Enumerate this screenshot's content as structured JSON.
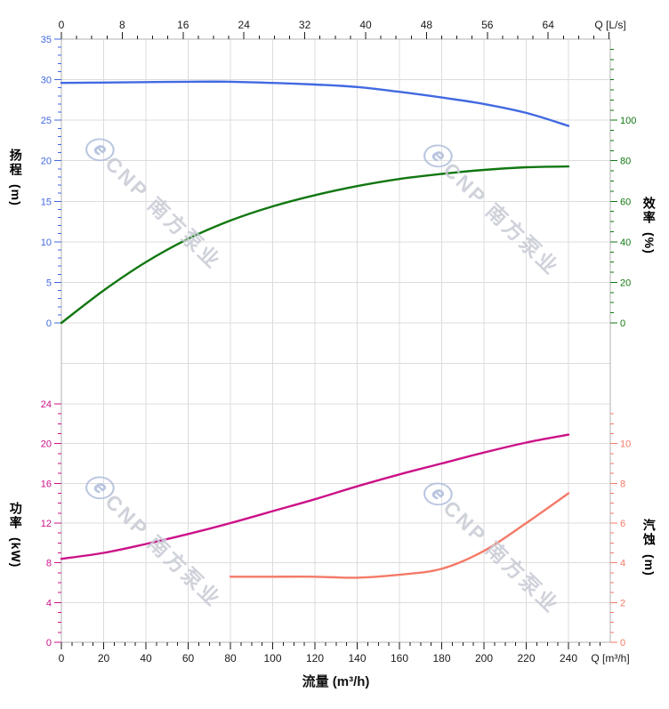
{
  "chart_data": {
    "type": "line",
    "grid": true,
    "legend": false,
    "x_axis_bottom": {
      "label": "流量 (m³/h)",
      "corner_label": "Q [m³/h]",
      "unit": "m³/h",
      "ticks": [
        0,
        20,
        40,
        60,
        80,
        100,
        120,
        140,
        160,
        180,
        200,
        220,
        240
      ],
      "minor_step": 5,
      "range": [
        0,
        260
      ]
    },
    "x_axis_top": {
      "corner_label": "Q [L/s]",
      "unit": "L/s",
      "ticks": [
        0,
        8,
        16,
        24,
        32,
        40,
        48,
        56,
        64
      ],
      "minor_step": 2,
      "range": [
        0,
        72
      ]
    },
    "panels": [
      {
        "name": "head-efficiency",
        "left_axis": {
          "title": "扬程",
          "unit": "(m)",
          "color": "#4169e1",
          "ticks": [
            0,
            5,
            10,
            15,
            20,
            25,
            30,
            35
          ],
          "minor_step": 1,
          "range": [
            0,
            35
          ]
        },
        "right_axis": {
          "title": "效率",
          "unit": "(%)",
          "color": "#117711",
          "ticks": [
            0,
            20,
            40,
            60,
            80,
            100
          ],
          "minor_step": 5,
          "range": [
            0,
            140
          ]
        },
        "series": [
          {
            "name": "head",
            "label": "扬程",
            "axis": "left",
            "color": "#4169e1",
            "x": [
              0,
              20,
              40,
              60,
              80,
              100,
              120,
              140,
              160,
              180,
              200,
              220,
              240
            ],
            "y": [
              29.6,
              29.65,
              29.7,
              29.75,
              29.75,
              29.6,
              29.4,
              29.1,
              28.5,
              27.8,
              27.0,
              25.9,
              24.3
            ]
          },
          {
            "name": "efficiency",
            "label": "效率",
            "axis": "right",
            "color": "#117711",
            "x": [
              0,
              20,
              40,
              60,
              80,
              100,
              120,
              140,
              160,
              180,
              200,
              220,
              240
            ],
            "y": [
              0,
              16,
              30,
              41.5,
              50.5,
              57.5,
              63,
              67.5,
              71,
              73.5,
              75.5,
              76.8,
              77.2
            ]
          }
        ]
      },
      {
        "name": "power-npsh",
        "left_axis": {
          "title": "功率",
          "unit": "(kW)",
          "color": "#cc1188",
          "ticks": [
            0,
            4,
            8,
            12,
            16,
            20,
            24
          ],
          "minor_step": 1,
          "range": [
            0,
            24
          ]
        },
        "right_axis": {
          "title": "汽蚀",
          "unit": "(m)",
          "color": "#f47a68",
          "ticks": [
            0,
            2,
            4,
            6,
            8,
            10
          ],
          "minor_step": 0.5,
          "range": [
            0,
            12
          ]
        },
        "series": [
          {
            "name": "power",
            "label": "功率",
            "axis": "left",
            "color": "#cc1188",
            "x": [
              0,
              20,
              40,
              60,
              80,
              100,
              120,
              140,
              160,
              180,
              200,
              220,
              240
            ],
            "y": [
              8.4,
              9.0,
              9.9,
              10.9,
              12.0,
              13.2,
              14.4,
              15.7,
              16.9,
              18.0,
              19.1,
              20.1,
              20.9
            ]
          },
          {
            "name": "npsh",
            "label": "汽蚀",
            "axis": "right",
            "color": "#f47a68",
            "x": [
              80,
              100,
              120,
              140,
              160,
              180,
              200,
              220,
              240
            ],
            "y": [
              3.3,
              3.3,
              3.3,
              3.25,
              3.4,
              3.7,
              4.6,
              6.0,
              7.5
            ]
          }
        ]
      }
    ]
  },
  "watermark": {
    "logo": "ⓔ",
    "text": "CNP 南方泵业"
  },
  "colors": {
    "background": "#ffffff",
    "grid": "#dcdcdc",
    "border": "#b3b3b3",
    "axis_text": "#1a1a1a",
    "head": "#4169e1",
    "efficiency": "#117711",
    "power": "#cc1188",
    "npsh": "#f47a68",
    "watermark": "#c7cad3"
  }
}
